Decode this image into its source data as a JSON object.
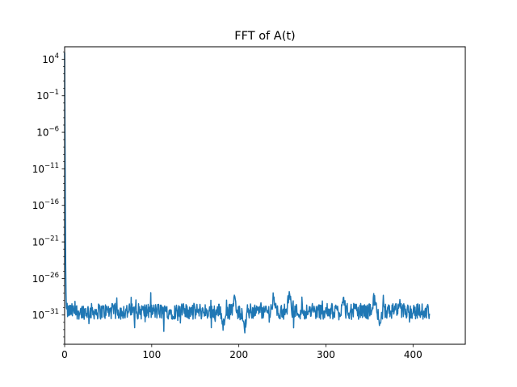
{
  "chart_data": {
    "type": "line",
    "title": "FFT of A(t)",
    "xlabel": "",
    "ylabel": "",
    "yscale": "log",
    "xlim": [
      0,
      460
    ],
    "ylim_exponent": [
      -35,
      5.7
    ],
    "grid": false,
    "legend": "none",
    "x_ticks": [
      {
        "value": 0,
        "label": "0"
      },
      {
        "value": 100,
        "label": "100"
      },
      {
        "value": 200,
        "label": "200"
      },
      {
        "value": 300,
        "label": "300"
      },
      {
        "value": 400,
        "label": "400"
      }
    ],
    "y_ticks": [
      {
        "exponent": 4,
        "base": "10",
        "power": "4"
      },
      {
        "exponent": -1,
        "base": "10",
        "power": "−1"
      },
      {
        "exponent": -6,
        "base": "10",
        "power": "−6"
      },
      {
        "exponent": -11,
        "base": "10",
        "power": "−11"
      },
      {
        "exponent": -16,
        "base": "10",
        "power": "−16"
      },
      {
        "exponent": -21,
        "base": "10",
        "power": "−21"
      },
      {
        "exponent": -26,
        "base": "10",
        "power": "−26"
      },
      {
        "exponent": -31,
        "base": "10",
        "power": "−31"
      }
    ],
    "series": [
      {
        "color": "#1f77b4",
        "x_range": [
          0,
          419
        ],
        "peak": {
          "x": 0,
          "log10_y": 4.9
        },
        "decay_tail_log10_y": [
          4.9,
          -6,
          -16,
          -24,
          -28,
          -30
        ],
        "noise_floor_log10_y_mean": -30.5,
        "noise_floor_log10_y_spread": [
          -33.5,
          -27.5
        ],
        "features": [
          {
            "x": 195,
            "log10_y": -27.9
          },
          {
            "x": 207,
            "log10_y": -33.6
          },
          {
            "x": 182,
            "log10_y": -33.2
          },
          {
            "x": 240,
            "log10_y": -27.3
          },
          {
            "x": 258,
            "log10_y": -27.3
          },
          {
            "x": 320,
            "log10_y": -27.8
          },
          {
            "x": 355,
            "log10_y": -27.8
          },
          {
            "x": 362,
            "log10_y": -33.0
          }
        ]
      }
    ]
  }
}
